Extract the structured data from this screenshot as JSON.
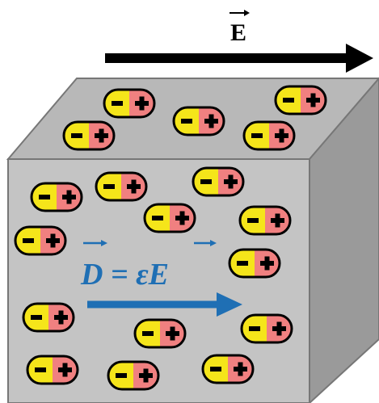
{
  "field_label": "E",
  "equation": "D = εE"
}
